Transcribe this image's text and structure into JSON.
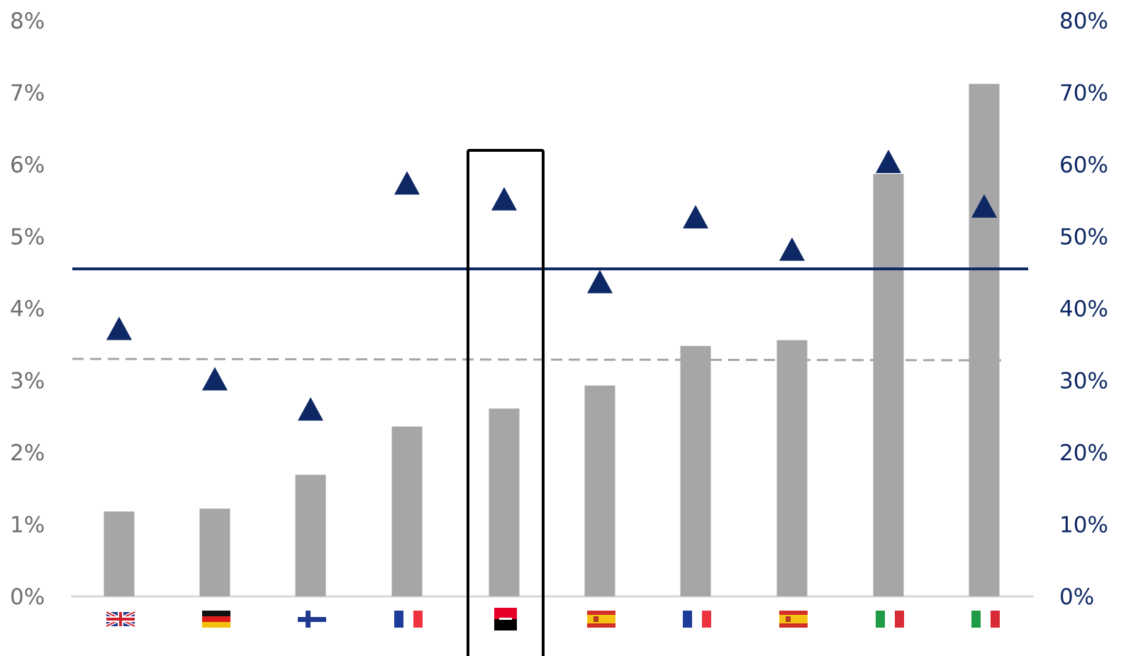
{
  "chart_data": {
    "type": "bar",
    "categories": [
      "UK",
      "Germany",
      "Finland",
      "France",
      "Société Générale",
      "Spain",
      "France",
      "Spain",
      "Italy",
      "Italy"
    ],
    "flags": [
      "uk-flag",
      "germany-flag",
      "finland-flag",
      "france-flag",
      "societe-generale-logo",
      "spain-flag",
      "france-flag",
      "spain-flag",
      "italy-flag",
      "italy-flag"
    ],
    "series": [
      {
        "axis": "left",
        "type": "bar",
        "color": "#A6A6A6",
        "values": [
          1.18,
          1.22,
          1.69,
          2.36,
          2.61,
          2.93,
          3.48,
          3.56,
          5.87,
          7.12
        ]
      },
      {
        "axis": "right",
        "type": "scatter",
        "marker": "triangle",
        "color": "#0D2864",
        "values": [
          37,
          30,
          25.8,
          57.2,
          55,
          43.5,
          52.5,
          48,
          60.2,
          54
        ]
      }
    ],
    "reference_lines": [
      {
        "axis": "right",
        "value": 45.5,
        "style": "solid",
        "color": "#0D2864"
      },
      {
        "axis": "left",
        "value": 3.3,
        "style": "dashed",
        "color": "#A6A6A6"
      }
    ],
    "y_left": {
      "ylim": [
        0,
        8
      ],
      "ticks": [
        "0%",
        "1%",
        "2%",
        "3%",
        "4%",
        "5%",
        "6%",
        "7%",
        "8%"
      ],
      "color": "#6E6E6E"
    },
    "y_right": {
      "ylim": [
        0,
        80
      ],
      "ticks": [
        "0%",
        "10%",
        "20%",
        "30%",
        "40%",
        "50%",
        "60%",
        "70%",
        "80%"
      ],
      "color": "#0D2864"
    },
    "highlight_index": 4,
    "grid": false,
    "title": "",
    "xlabel": "",
    "ylabel": ""
  }
}
